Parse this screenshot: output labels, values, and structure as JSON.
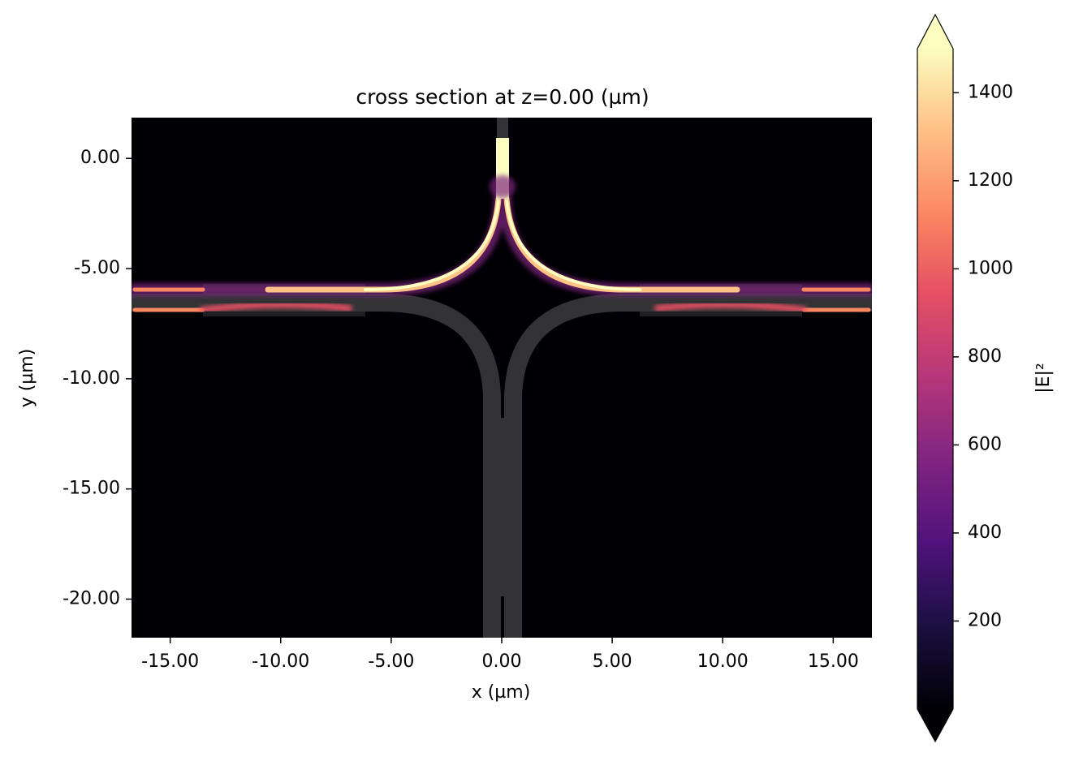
{
  "chart_data": {
    "type": "field",
    "title": "cross section at z=0.00 (µm)",
    "xlabel": "x (µm)",
    "ylabel": "y (µm)",
    "xlim": [
      -16.75,
      16.75
    ],
    "ylim": [
      -21.75,
      1.85
    ],
    "xticks": [
      {
        "value": -15,
        "label": "-15.00"
      },
      {
        "value": -10,
        "label": "-10.00"
      },
      {
        "value": -5,
        "label": "-5.00"
      },
      {
        "value": 0,
        "label": "0.00"
      },
      {
        "value": 5,
        "label": "5.00"
      },
      {
        "value": 10,
        "label": "10.00"
      },
      {
        "value": 15,
        "label": "15.00"
      }
    ],
    "yticks": [
      {
        "value": 0,
        "label": "0.00"
      },
      {
        "value": -5,
        "label": "-5.00"
      },
      {
        "value": -10,
        "label": "-10.00"
      },
      {
        "value": -15,
        "label": "-15.00"
      },
      {
        "value": -20,
        "label": "-20.00"
      }
    ],
    "colorbar": {
      "label": "|E|²",
      "lim": [
        0,
        1500
      ],
      "ticks": [
        200,
        400,
        600,
        800,
        1000,
        1200,
        1400
      ],
      "extend": "both"
    }
  }
}
